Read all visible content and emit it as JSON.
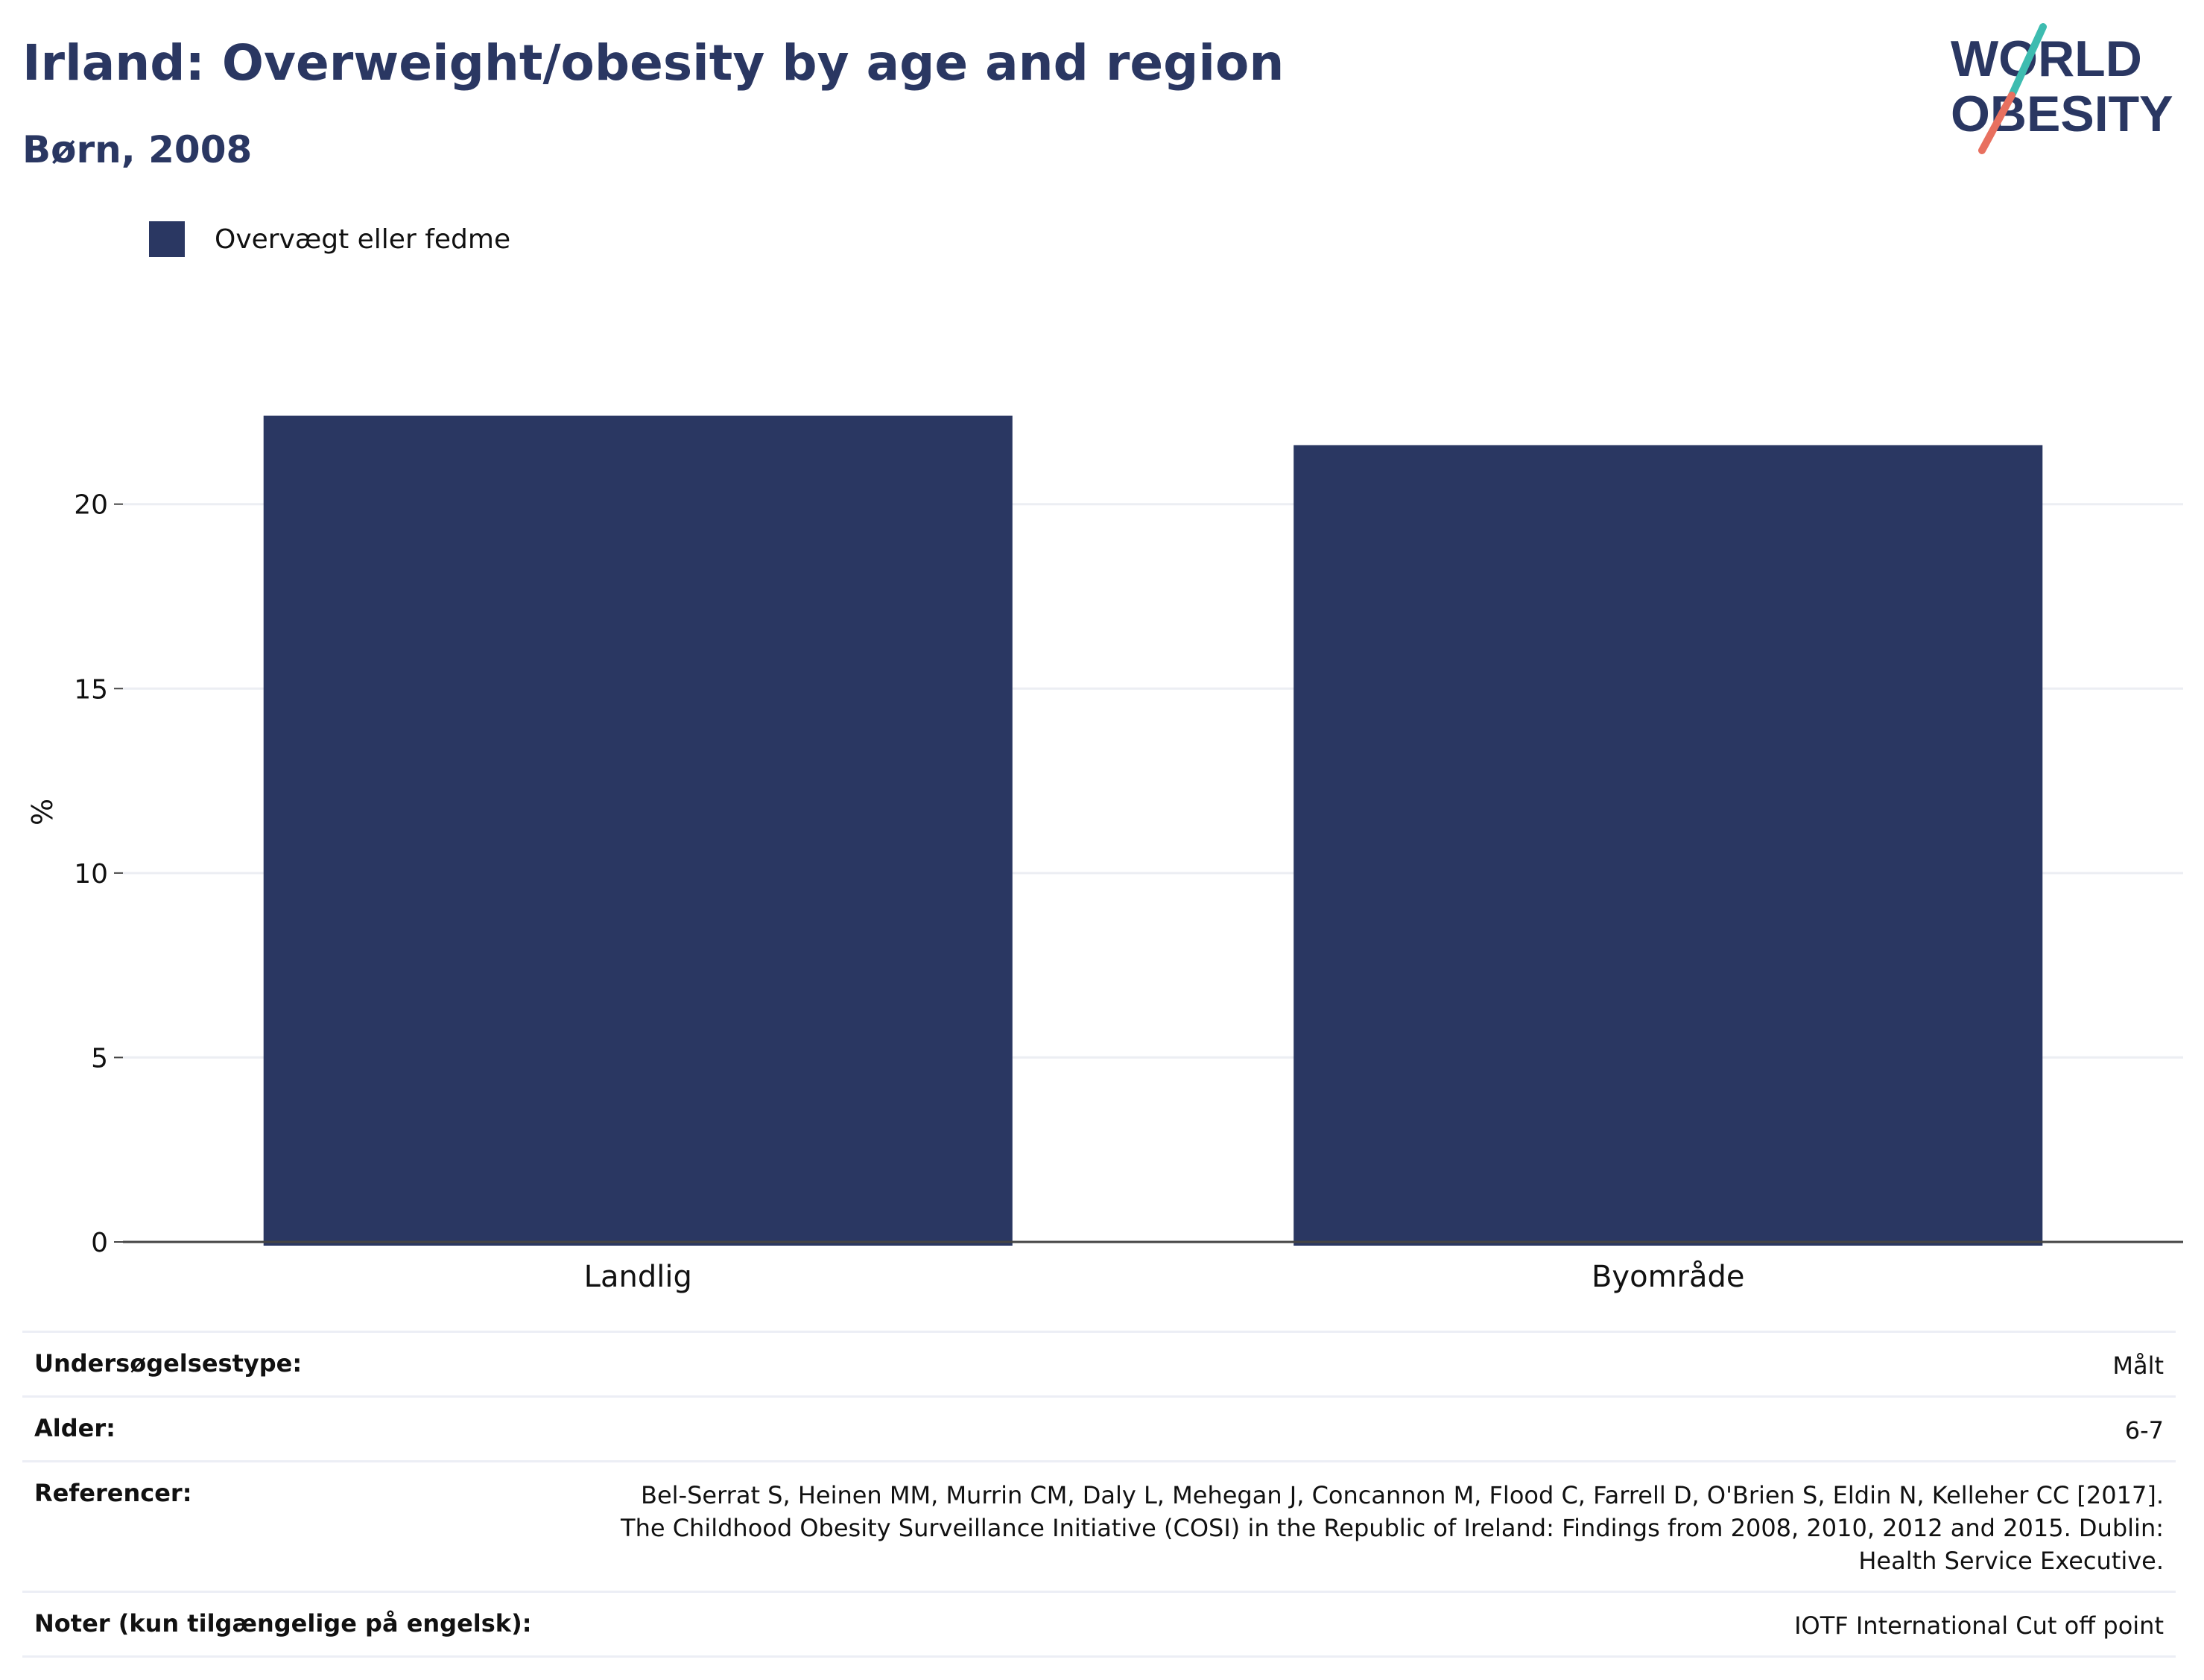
{
  "header": {
    "title": "Irland: Overweight/obesity by age and region",
    "subtitle": "Børn, 2008"
  },
  "logo": {
    "line1": "WORLD",
    "line2": "OBESITY",
    "colors": {
      "text": "#2a3762",
      "slash_top": "#3dbcb0",
      "slash_bottom": "#e8705f"
    }
  },
  "legend": {
    "label": "Overvægt eller fedme",
    "color": "#2a3762"
  },
  "chart_data": {
    "type": "bar",
    "categories": [
      "Landlig",
      "Byområde"
    ],
    "series": [
      {
        "name": "Overvægt eller fedme",
        "values": [
          22.4,
          21.6
        ],
        "color": "#2a3762"
      }
    ],
    "ylabel": "%",
    "ylim": [
      0,
      24
    ],
    "yticks": [
      0,
      5,
      10,
      15,
      20
    ],
    "grid": true,
    "legend_position": "top-left"
  },
  "info": {
    "rows": [
      {
        "label": "Undersøgelsestype:",
        "value": "Målt"
      },
      {
        "label": "Alder:",
        "value": "6-7"
      },
      {
        "label": "Referencer:",
        "value": "Bel-Serrat S, Heinen MM, Murrin CM, Daly L, Mehegan J, Concannon M, Flood C, Farrell D, O'Brien S, Eldin N, Kelleher CC [2017]. The Childhood Obesity Surveillance Initiative (COSI) in the Republic of Ireland: Findings from 2008, 2010, 2012 and 2015. Dublin: Health Service Executive."
      },
      {
        "label": "Noter (kun tilgængelige på engelsk):",
        "value": "IOTF International Cut off point"
      }
    ]
  }
}
